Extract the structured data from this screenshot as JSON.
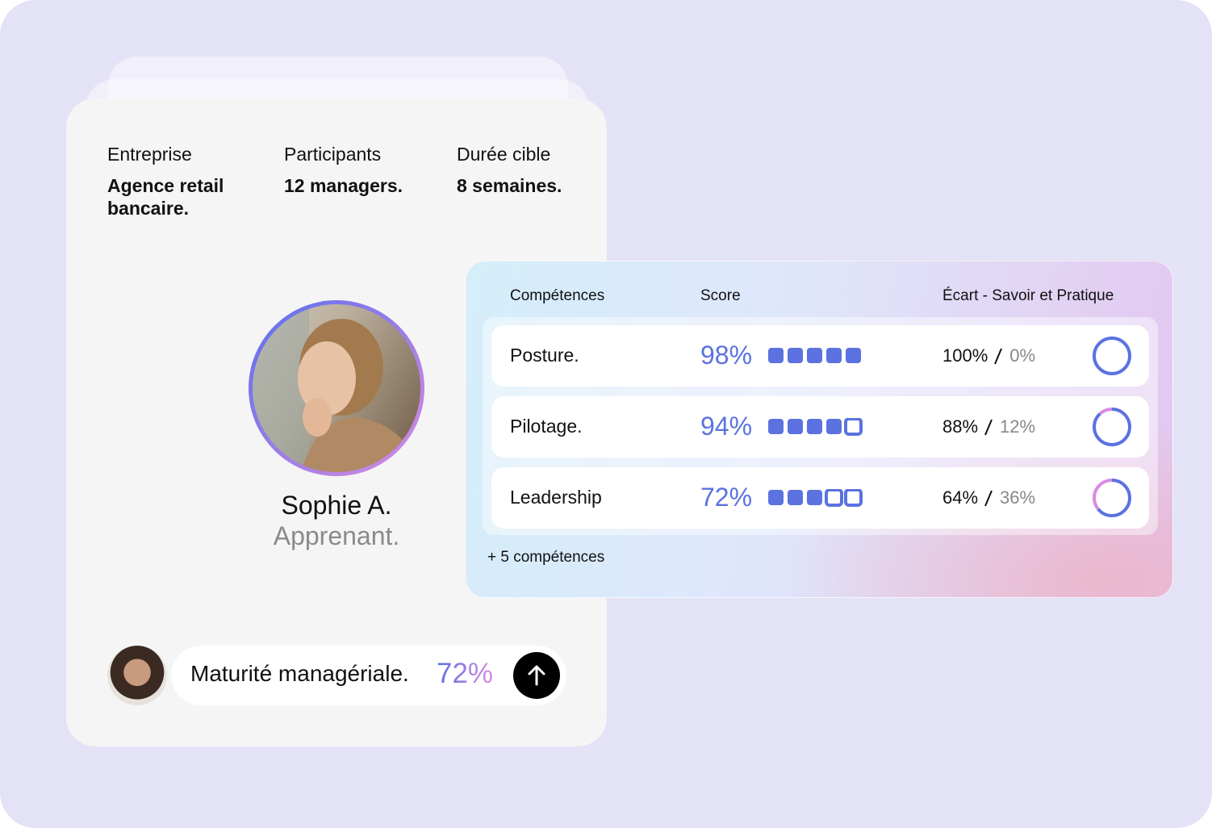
{
  "project": {
    "fields": [
      {
        "label": "Entreprise",
        "value": "Agence retail bancaire."
      },
      {
        "label": "Participants",
        "value": "12 managers."
      },
      {
        "label": "Durée cible",
        "value": "8 semaines."
      }
    ]
  },
  "learner": {
    "name": "Sophie A.",
    "role": "Apprenant."
  },
  "maturity": {
    "label": "Maturité managériale.",
    "value": "72%"
  },
  "skills": {
    "headers": [
      "Compétences",
      "Score",
      "Écart - Savoir et Pratique"
    ],
    "rows": [
      {
        "name": "Posture.",
        "score": "98%",
        "filled_blocks": 5,
        "savoir": {
          "value": 100,
          "label": "100%"
        },
        "pratique": {
          "value": 0,
          "label": "0%"
        }
      },
      {
        "name": "Pilotage.",
        "score": "94%",
        "filled_blocks": 4,
        "savoir": {
          "value": 88,
          "label": "88%"
        },
        "pratique": {
          "value": 12,
          "label": "12%"
        }
      },
      {
        "name": "Leadership",
        "score": "72%",
        "filled_blocks": 3,
        "savoir": {
          "value": 64,
          "label": "64%"
        },
        "pratique": {
          "value": 36,
          "label": "36%"
        }
      }
    ],
    "more": "+ 5 compétences"
  }
}
